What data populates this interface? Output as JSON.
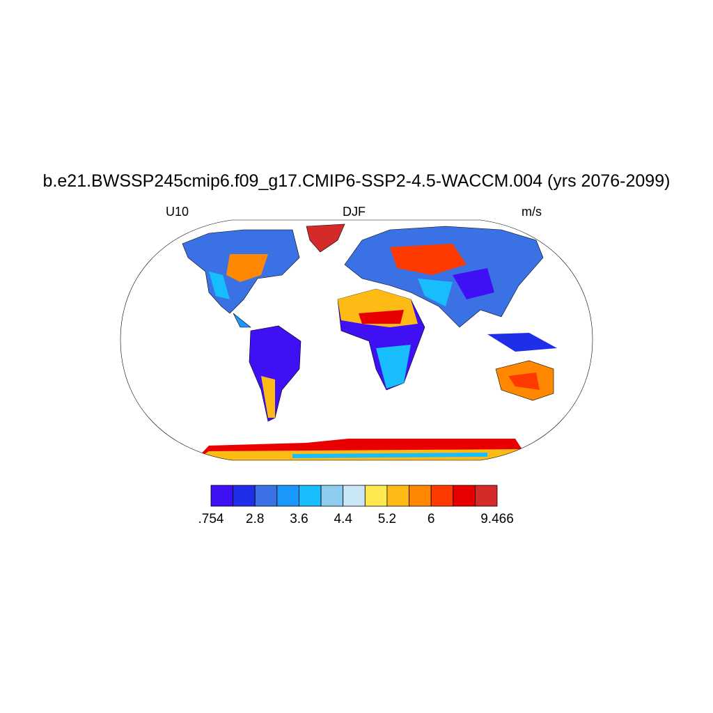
{
  "title": "b.e21.BWSSP245cmip6.f09_g17.CMIP6-SSP2-4.5-WACCM.004 (yrs 2076-2099)",
  "left_string": "U10",
  "center_string": "DJF",
  "right_string": "m/s",
  "map": {
    "projection": "Robinson",
    "variable": "U10",
    "season": "DJF",
    "units": "m/s"
  },
  "colorbar": {
    "colors": [
      "#4010f5",
      "#1f2ee8",
      "#3a72e6",
      "#1a98fb",
      "#18bdfc",
      "#8ecdf0",
      "#c9e6f6",
      "#ffe84f",
      "#ffbb15",
      "#ff8800",
      "#ff3a00",
      "#e80000",
      "#d52a2a"
    ],
    "labels": [
      ".754",
      "",
      "2.8",
      "",
      "3.6",
      "",
      "4.4",
      "",
      "5.2",
      "",
      "6",
      "",
      "",
      "9.466"
    ],
    "label_edges": [
      0,
      3,
      5,
      7,
      9,
      11,
      13
    ]
  }
}
